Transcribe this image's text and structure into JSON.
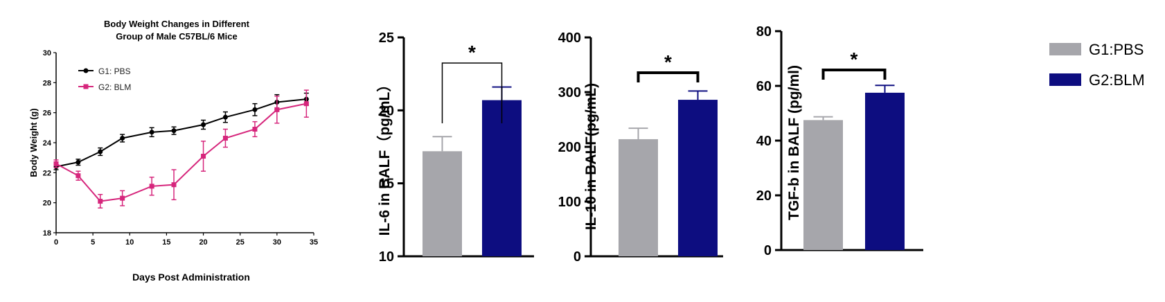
{
  "colors": {
    "g1": "#a6a6ab",
    "g2": "#0d0d80",
    "line_g1": "#000000",
    "line_g2": "#d6267c",
    "axis": "#000000"
  },
  "legend": {
    "g1_label": "G1:PBS",
    "g2_label": "G2:BLM"
  },
  "chart_data": [
    {
      "type": "line",
      "title_line1": "Body Weight  Changes in Different",
      "title_line2": "Group of Male C57BL/6 Mice",
      "xlabel": "Days Post Administration",
      "ylabel": "Body Weight (g)",
      "xlim": [
        0,
        35
      ],
      "ylim": [
        18,
        30
      ],
      "xticks": [
        "0",
        "5",
        "10",
        "15",
        "20",
        "25",
        "30",
        "35"
      ],
      "yticks": [
        "18",
        "20",
        "22",
        "24",
        "26",
        "28",
        "30"
      ],
      "legend_position": "top-left",
      "series": [
        {
          "name": "G1: PBS",
          "x": [
            0,
            3,
            6,
            9,
            13,
            16,
            20,
            23,
            27,
            30,
            34
          ],
          "y": [
            22.4,
            22.7,
            23.4,
            24.3,
            24.7,
            24.8,
            25.2,
            25.7,
            26.2,
            26.7,
            26.9
          ],
          "err": [
            0.2,
            0.2,
            0.25,
            0.25,
            0.3,
            0.25,
            0.3,
            0.35,
            0.4,
            0.5,
            0.4
          ]
        },
        {
          "name": "G2: BLM",
          "x": [
            0,
            3,
            6,
            9,
            13,
            16,
            20,
            23,
            27,
            30,
            34
          ],
          "y": [
            22.6,
            21.8,
            20.1,
            20.3,
            21.1,
            21.2,
            23.1,
            24.3,
            24.9,
            26.2,
            26.6
          ],
          "err": [
            0.25,
            0.3,
            0.45,
            0.5,
            0.6,
            1.0,
            1.0,
            0.6,
            0.5,
            0.9,
            0.9
          ]
        }
      ]
    },
    {
      "type": "bar",
      "ylabel": "IL-6 in BALF（pg/mL）",
      "ylim": [
        10,
        25
      ],
      "yticks": [
        "10",
        "15",
        "20",
        "25"
      ],
      "categories": [
        "G1:PBS",
        "G2:BLM"
      ],
      "values": [
        17.2,
        20.7
      ],
      "err": [
        1.0,
        0.9
      ],
      "significance": "*"
    },
    {
      "type": "bar",
      "ylabel": "IL-10 in BALF(pg/mL)",
      "ylim": [
        0,
        400
      ],
      "yticks": [
        "0",
        "100",
        "200",
        "300",
        "400"
      ],
      "categories": [
        "G1:PBS",
        "G2:BLM"
      ],
      "values": [
        214,
        286
      ],
      "err": [
        20,
        16
      ],
      "significance": "*"
    },
    {
      "type": "bar",
      "ylabel": "TGF-b in BALF (pg/ml)",
      "ylim": [
        0,
        80
      ],
      "yticks": [
        "0",
        "20",
        "40",
        "60",
        "80"
      ],
      "categories": [
        "G1:PBS",
        "G2:BLM"
      ],
      "values": [
        47.5,
        57.5
      ],
      "err": [
        1.2,
        2.7
      ],
      "significance": "*"
    }
  ]
}
